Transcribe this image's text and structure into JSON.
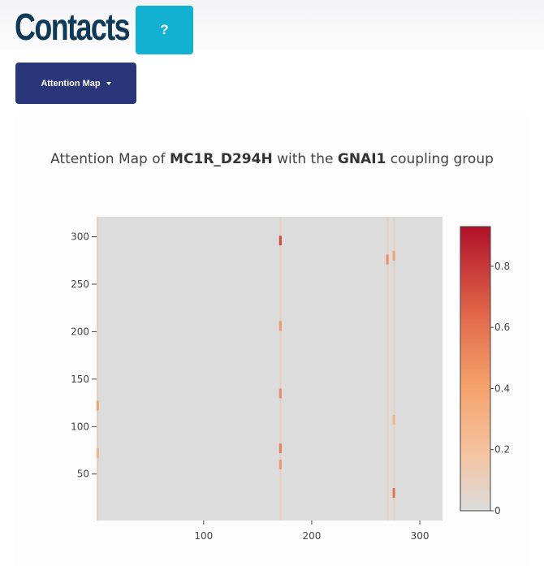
{
  "header": {
    "title": "Contacts",
    "help_label": "?",
    "help_color": "#12b1d1"
  },
  "toolbar": {
    "dropdown_label": "Attention Map",
    "dropdown_color": "#2a3679"
  },
  "chart_data": {
    "type": "heatmap",
    "title_prefix": "Attention Map of ",
    "title_protein": "MC1R_D294H",
    "title_middle": " with the ",
    "title_group": "GNAI1",
    "title_suffix": " coupling group",
    "xlabel": "",
    "ylabel": "",
    "x_range": [
      1,
      321
    ],
    "y_range": [
      1,
      321
    ],
    "x_ticks": [
      100,
      200,
      300
    ],
    "y_ticks": [
      50,
      100,
      150,
      200,
      250,
      300
    ],
    "colorbar": {
      "range": [
        0,
        0.93
      ],
      "ticks": [
        "0",
        "0.2",
        "0.4",
        "0.6",
        "0.8"
      ],
      "tick_values": [
        0,
        0.2,
        0.4,
        0.6,
        0.8
      ],
      "colorscale": [
        [
          0,
          "#dcdcdc"
        ],
        [
          0.2,
          "#f5c4a0"
        ],
        [
          0.45,
          "#f5a06a"
        ],
        [
          0.7,
          "#e06548"
        ],
        [
          1,
          "#b0102a"
        ]
      ]
    },
    "highlights": [
      {
        "x": 171,
        "y": 296,
        "value": 0.75
      },
      {
        "x": 171,
        "y": 206,
        "value": 0.45
      },
      {
        "x": 171,
        "y": 135,
        "value": 0.5
      },
      {
        "x": 171,
        "y": 77,
        "value": 0.55
      },
      {
        "x": 171,
        "y": 60,
        "value": 0.45
      },
      {
        "x": 270,
        "y": 276,
        "value": 0.5
      },
      {
        "x": 276,
        "y": 280,
        "value": 0.4
      },
      {
        "x": 276,
        "y": 30,
        "value": 0.6
      },
      {
        "x": 276,
        "y": 107,
        "value": 0.3
      },
      {
        "x": 2,
        "y": 122,
        "value": 0.4
      },
      {
        "x": 2,
        "y": 72,
        "value": 0.3
      }
    ]
  }
}
